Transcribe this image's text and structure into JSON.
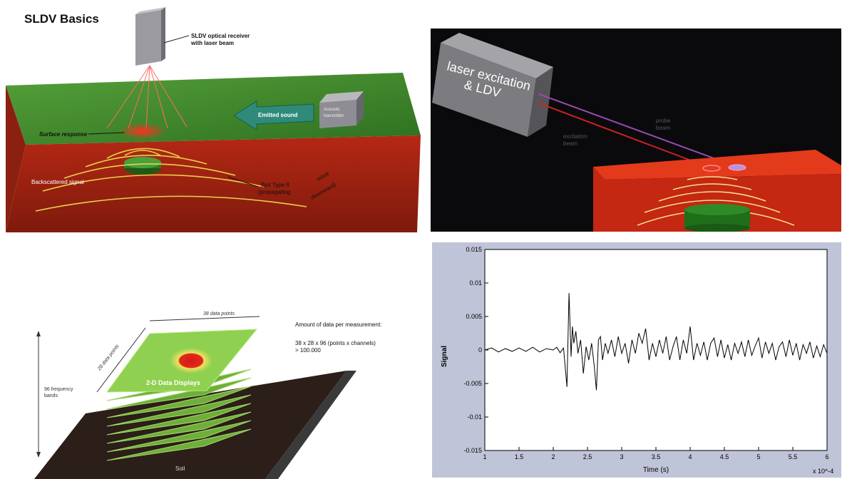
{
  "page": {
    "title": "SLDV Basics"
  },
  "panel1": {
    "receiver_label_1": "SLDV optical receiver",
    "receiver_label_2": "with laser beam",
    "emitted_sound": "Emitted sound",
    "transmitter_1": "Acoustic",
    "transmitter_2": "transmitter",
    "surface_response": "Surface response",
    "backscattered": "Backscattered signal",
    "biot_1": "Biot Type II",
    "biot_2": "(propagating",
    "wave_1": "wave",
    "wave_2": "downward)",
    "colors": {
      "top": "#3f8a2c",
      "side": "#a81f10",
      "wave": "#e8d24a",
      "box": "#8a8a8e"
    }
  },
  "panel2": {
    "box_line_1": "laser excitation",
    "box_line_2": "& LDV",
    "probe_1": "probe",
    "probe_2": "beam",
    "excitation_1": "excitation",
    "excitation_2": "beam"
  },
  "panel3": {
    "x_points": "38 data points",
    "y_points": "28 data points",
    "bands_1": "96 frequency",
    "bands_2": "bands",
    "amount": "Amount of data per measurement:",
    "formula": "38 x 28 x 96 (points x channels)",
    "total": "> 100.000",
    "display_label": "2-D Data Displays",
    "soil": "Soil"
  },
  "chart_data": {
    "type": "line",
    "xlabel": "Time (s)",
    "ylabel": "Signal",
    "x_multiplier": "x 10^-4",
    "xlim": [
      1,
      6
    ],
    "ylim": [
      -0.015,
      0.015
    ],
    "xticks": [
      "1",
      "1.5",
      "2",
      "2.5",
      "3",
      "3.5",
      "4",
      "4.5",
      "5",
      "5.5",
      "6"
    ],
    "yticks": [
      "0.015",
      "0.01",
      "0.005",
      "0",
      "-0.005",
      "-0.01",
      "-0.015"
    ],
    "series": [
      {
        "x": [
          1.0,
          1.1,
          1.2,
          1.3,
          1.4,
          1.5,
          1.6,
          1.7,
          1.8,
          1.9,
          2.0,
          2.05,
          2.1,
          2.15,
          2.2,
          2.23,
          2.26,
          2.28,
          2.3,
          2.33,
          2.36,
          2.4,
          2.44,
          2.48,
          2.52,
          2.56,
          2.6,
          2.63,
          2.66,
          2.69,
          2.72,
          2.76,
          2.8,
          2.85,
          2.9,
          2.95,
          3.0,
          3.05,
          3.1,
          3.15,
          3.2,
          3.25,
          3.3,
          3.35,
          3.4,
          3.45,
          3.5,
          3.55,
          3.6,
          3.65,
          3.7,
          3.75,
          3.8,
          3.85,
          3.9,
          3.95,
          4.0,
          4.05,
          4.1,
          4.15,
          4.2,
          4.25,
          4.3,
          4.35,
          4.4,
          4.45,
          4.5,
          4.55,
          4.6,
          4.65,
          4.7,
          4.75,
          4.8,
          4.85,
          4.9,
          4.95,
          5.0,
          5.05,
          5.1,
          5.15,
          5.2,
          5.25,
          5.3,
          5.35,
          5.4,
          5.45,
          5.5,
          5.55,
          5.6,
          5.65,
          5.7,
          5.75,
          5.8,
          5.85,
          5.9,
          5.95,
          6.0
        ],
        "y": [
          0.0,
          0.0003,
          -0.0003,
          0.0002,
          -0.0002,
          0.0003,
          -0.0002,
          0.0004,
          -0.0003,
          0.0002,
          0.0,
          0.0004,
          -0.0004,
          0.0003,
          -0.0055,
          0.0085,
          -0.001,
          0.0035,
          0.001,
          0.0028,
          -0.0005,
          0.0015,
          -0.0035,
          0.0005,
          -0.0015,
          0.001,
          -0.0025,
          -0.006,
          0.0015,
          0.002,
          -0.0015,
          0.001,
          -0.0005,
          0.0015,
          -0.001,
          0.002,
          -0.0005,
          0.001,
          -0.002,
          0.0015,
          -0.0005,
          0.0025,
          0.001,
          0.0032,
          -0.0015,
          0.001,
          -0.001,
          0.0015,
          -0.0005,
          0.002,
          -0.0015,
          0.0005,
          0.002,
          -0.0015,
          0.0015,
          -0.0005,
          0.0035,
          -0.0015,
          0.001,
          -0.0008,
          0.0012,
          -0.0015,
          0.001,
          0.0018,
          -0.001,
          0.0015,
          -0.0012,
          0.0008,
          -0.0015,
          0.001,
          -0.0005,
          0.0012,
          -0.001,
          0.0015,
          -0.0008,
          0.0006,
          0.0018,
          -0.0012,
          0.0012,
          -0.0005,
          0.001,
          -0.0015,
          0.0005,
          0.0012,
          -0.001,
          0.0015,
          -0.0008,
          0.001,
          -0.0015,
          0.0008,
          -0.0005,
          0.0012,
          -0.0012,
          0.0006,
          -0.001,
          0.0008,
          -0.0005
        ]
      }
    ]
  }
}
